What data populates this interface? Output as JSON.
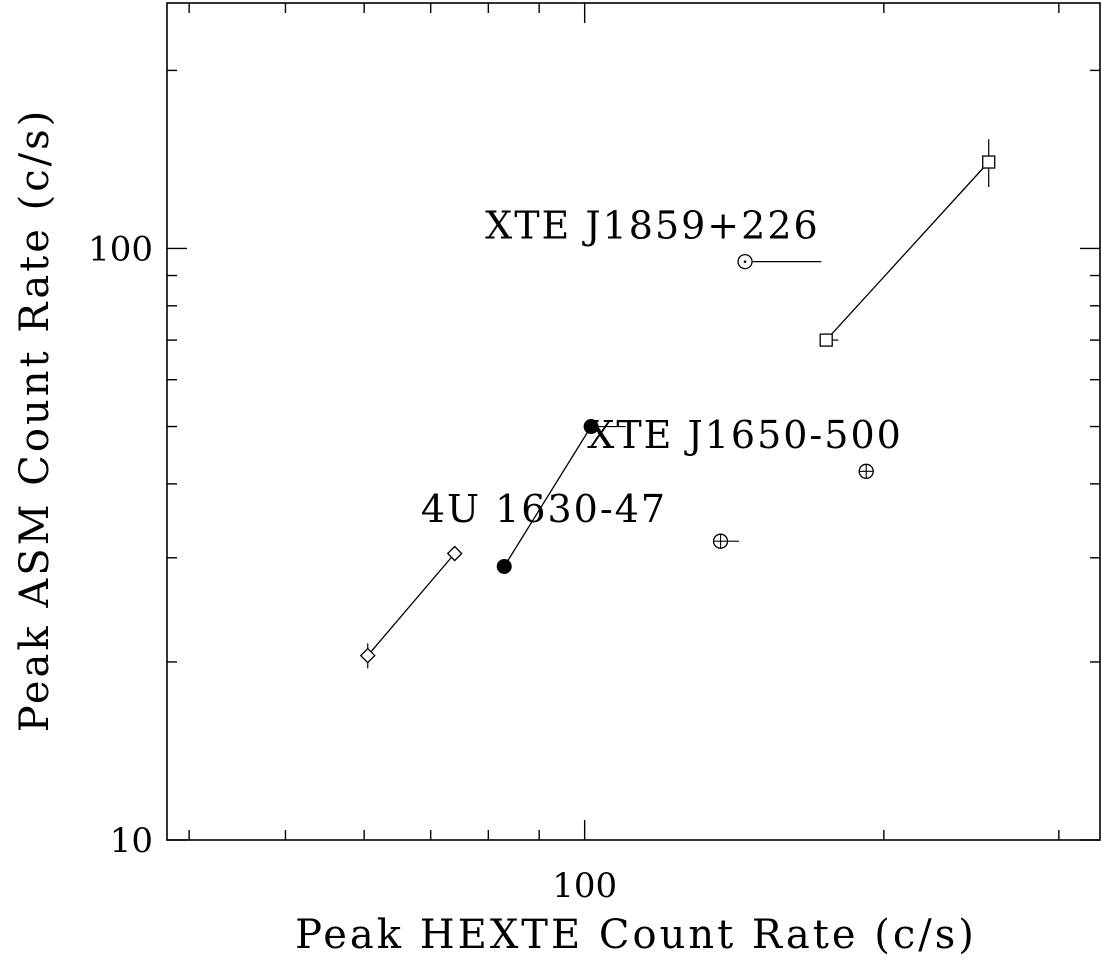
{
  "chart_data": {
    "type": "scatter",
    "title": "",
    "xlabel": "Peak HEXTE Count Rate (c/s)",
    "ylabel": "Peak ASM Count Rate (c/s)",
    "x_scale": "log",
    "y_scale": "log",
    "xlim": [
      38,
      330
    ],
    "ylim": [
      10,
      260
    ],
    "x_tick_labels": [
      "100"
    ],
    "y_tick_labels": [
      "10",
      "100"
    ],
    "grid": false,
    "series": [
      {
        "marker": "diamond",
        "points": [
          {
            "x": 60.5,
            "y": 20.5,
            "xerr": 0.5,
            "yerr": 1.0
          },
          {
            "x": 74,
            "y": 30.5,
            "xerr": 1.0,
            "yerr": 0.5
          }
        ],
        "connected": true
      },
      {
        "marker": "filled-circle",
        "points": [
          {
            "x": 83,
            "y": 29,
            "xerr": 0,
            "yerr": 0
          },
          {
            "x": 101.5,
            "y": 50,
            "xerr": [
              0,
              8.5
            ],
            "yerr": 0
          }
        ],
        "connected": true
      },
      {
        "marker": "square",
        "points": [
          {
            "x": 175,
            "y": 70,
            "xerr": [
              0,
              5
            ],
            "yerr": 0
          },
          {
            "x": 255,
            "y": 140,
            "xerr": 0,
            "yerr": 13
          }
        ],
        "connected": true
      },
      {
        "marker": "open-circle-plus",
        "points": [
          {
            "x": 137,
            "y": 32,
            "xerr": [
              0,
              6
            ],
            "yerr": 0
          }
        ],
        "connected": false
      },
      {
        "marker": "open-circle-plus",
        "points": [
          {
            "x": 192,
            "y": 42,
            "xerr": 0,
            "yerr": 0
          }
        ],
        "connected": false
      },
      {
        "marker": "open-circle-dot",
        "points": [
          {
            "x": 145,
            "y": 95,
            "xerr": [
              0,
              28
            ],
            "yerr": 0
          }
        ],
        "connected": false
      }
    ],
    "annotations": [
      {
        "text": "XTE J1859+226",
        "x": 117,
        "y": 104
      },
      {
        "text": "XTE J1650-500",
        "x": 145,
        "y": 46
      },
      {
        "text": "4U 1630-47",
        "x": 91,
        "y": 34.5
      }
    ]
  }
}
